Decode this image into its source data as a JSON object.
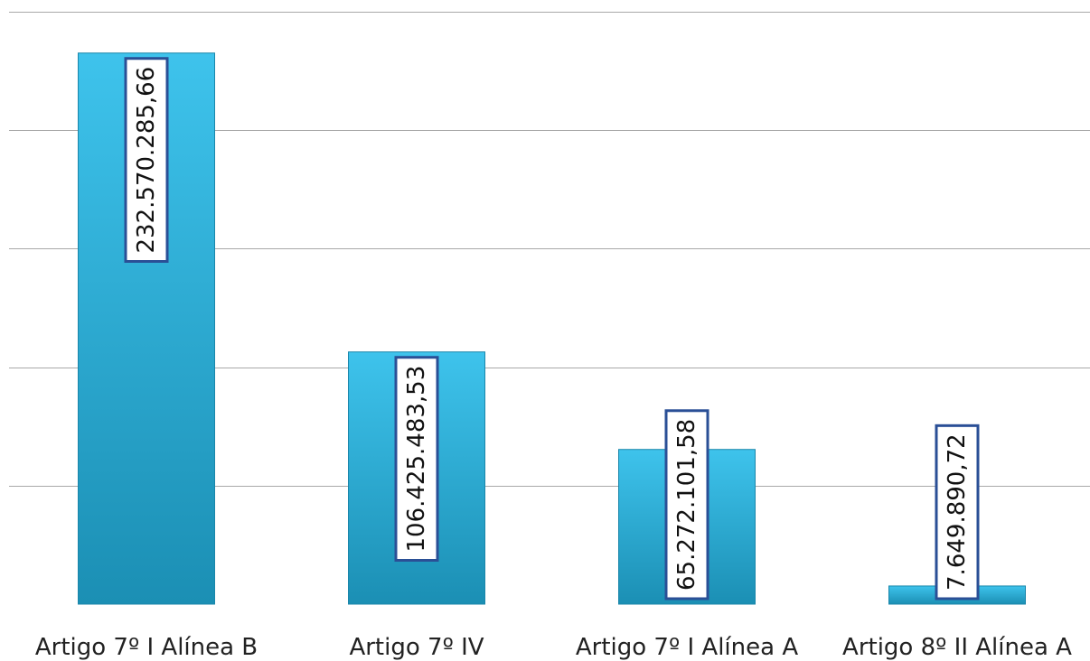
{
  "chart_data": {
    "type": "bar",
    "title": "",
    "xlabel": "",
    "ylabel": "",
    "categories": [
      "Artigo 7º I Alínea B",
      "Artigo 7º IV",
      "Artigo 7º I Alínea A",
      "Artigo 8º II Alínea A"
    ],
    "values": [
      232570285.66,
      106425483.53,
      65272101.58,
      7649890.72
    ],
    "data_labels": [
      "232.570.285,66",
      "106.425.483,53",
      "65.272.101,58",
      "7.649.890,72"
    ],
    "ylim": [
      0,
      250000000
    ],
    "grid": true,
    "gridline_step": 50000000,
    "y_tick_labels_visible": false,
    "legend": "none",
    "colors": {
      "bar_top": "#3ec3ec",
      "bar_bottom": "#1b8fb4",
      "bar_edge": "#1a86aa",
      "label_border": "#2a4f96",
      "gridline": "#a9a9a9"
    }
  }
}
